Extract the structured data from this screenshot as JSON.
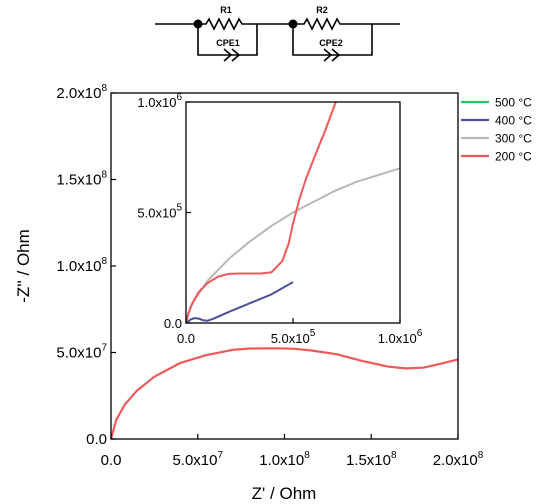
{
  "circuit": {
    "labels": [
      "R1",
      "CPE1",
      "R2",
      "CPE2"
    ]
  },
  "colors": {
    "500": "#22c55e",
    "400": "#4b4f9c",
    "300": "#b8b8b8",
    "200": "#f0585a"
  },
  "chart_data": [
    {
      "type": "line",
      "xlabel": "Z' / Ohm",
      "ylabel": "-Z'' / Ohm",
      "xlim": [
        0,
        200000000
      ],
      "ylim": [
        0,
        200000000
      ],
      "x_ticks": [
        {
          "value": 0,
          "mant": "0.0",
          "exp": ""
        },
        {
          "value": 50000000,
          "mant": "5.0x10",
          "exp": "7"
        },
        {
          "value": 100000000,
          "mant": "1.0x10",
          "exp": "8"
        },
        {
          "value": 150000000,
          "mant": "1.5x10",
          "exp": "8"
        },
        {
          "value": 200000000,
          "mant": "2.0x10",
          "exp": "8"
        }
      ],
      "y_ticks": [
        {
          "value": 0,
          "mant": "0.0",
          "exp": ""
        },
        {
          "value": 50000000,
          "mant": "5.0x10",
          "exp": "7"
        },
        {
          "value": 100000000,
          "mant": "1.0x10",
          "exp": "8"
        },
        {
          "value": 150000000,
          "mant": "1.5x10",
          "exp": "8"
        },
        {
          "value": 200000000,
          "mant": "2.0x10",
          "exp": "8"
        }
      ],
      "legend_position": "top-right outside",
      "series": [
        {
          "name": "500 °C",
          "color": "#22c55e",
          "x": [],
          "y": []
        },
        {
          "name": "400 °C",
          "color": "#4b4f9c",
          "x": [],
          "y": []
        },
        {
          "name": "300 °C",
          "color": "#b8b8b8",
          "x": [
            0,
            400000,
            1000000
          ],
          "y": [
            0,
            250000,
            600000
          ]
        },
        {
          "name": "200 °C",
          "color": "#f0585a",
          "x": [
            0,
            3000000,
            8000000,
            15000000,
            25000000,
            40000000,
            55000000,
            70000000,
            80000000,
            95000000,
            105000000,
            115000000,
            130000000,
            145000000,
            160000000,
            170000000,
            180000000,
            190000000,
            200000000
          ],
          "y": [
            0,
            11000000,
            20000000,
            28000000,
            36000000,
            44000000,
            48500000,
            51500000,
            52300000,
            52400000,
            52200000,
            51200000,
            49000000,
            45000000,
            41800000,
            40800000,
            41200000,
            43500000,
            46000000
          ]
        }
      ]
    },
    {
      "type": "line",
      "xlabel": "",
      "ylabel": "",
      "xlim": [
        0,
        1000000
      ],
      "ylim": [
        0,
        1000000
      ],
      "x_ticks": [
        {
          "value": 0,
          "mant": "0.0",
          "exp": ""
        },
        {
          "value": 500000,
          "mant": "5.0x10",
          "exp": "5"
        },
        {
          "value": 1000000,
          "mant": "1.0x10",
          "exp": "6"
        }
      ],
      "y_ticks": [
        {
          "value": 0,
          "mant": "0.0",
          "exp": ""
        },
        {
          "value": 500000,
          "mant": "5.0x10",
          "exp": "5"
        },
        {
          "value": 1000000,
          "mant": "1.0x10",
          "exp": "6"
        }
      ],
      "series": [
        {
          "name": "500 °C",
          "color": "#22c55e",
          "x": [
            0,
            3000,
            6000,
            9000,
            12000,
            16000
          ],
          "y": [
            0,
            5000,
            8000,
            9500,
            9000,
            8000
          ]
        },
        {
          "name": "400 °C",
          "color": "#4b4f9c",
          "x": [
            0,
            20000,
            40000,
            60000,
            80000,
            100000,
            130000,
            200000,
            300000,
            400000,
            500000
          ],
          "y": [
            0,
            15000,
            22000,
            20000,
            12000,
            10000,
            20000,
            50000,
            90000,
            130000,
            185000
          ]
        },
        {
          "name": "300 °C",
          "color": "#b8b8b8",
          "x": [
            0,
            20000,
            50000,
            100000,
            200000,
            300000,
            400000,
            500000,
            600000,
            700000,
            800000,
            900000,
            1000000
          ],
          "y": [
            0,
            70000,
            120000,
            190000,
            290000,
            370000,
            440000,
            500000,
            550000,
            600000,
            640000,
            670000,
            700000
          ]
        },
        {
          "name": "200 °C",
          "color": "#f0585a",
          "x": [
            0,
            10000,
            30000,
            60000,
            100000,
            150000,
            200000,
            250000,
            300000,
            350000,
            400000,
            450000,
            480000,
            500000,
            530000,
            560000,
            600000,
            650000,
            700000
          ],
          "y": [
            0,
            40000,
            90000,
            140000,
            180000,
            210000,
            222000,
            224000,
            224000,
            224000,
            230000,
            280000,
            360000,
            450000,
            560000,
            650000,
            750000,
            870000,
            1000000
          ]
        }
      ]
    }
  ]
}
